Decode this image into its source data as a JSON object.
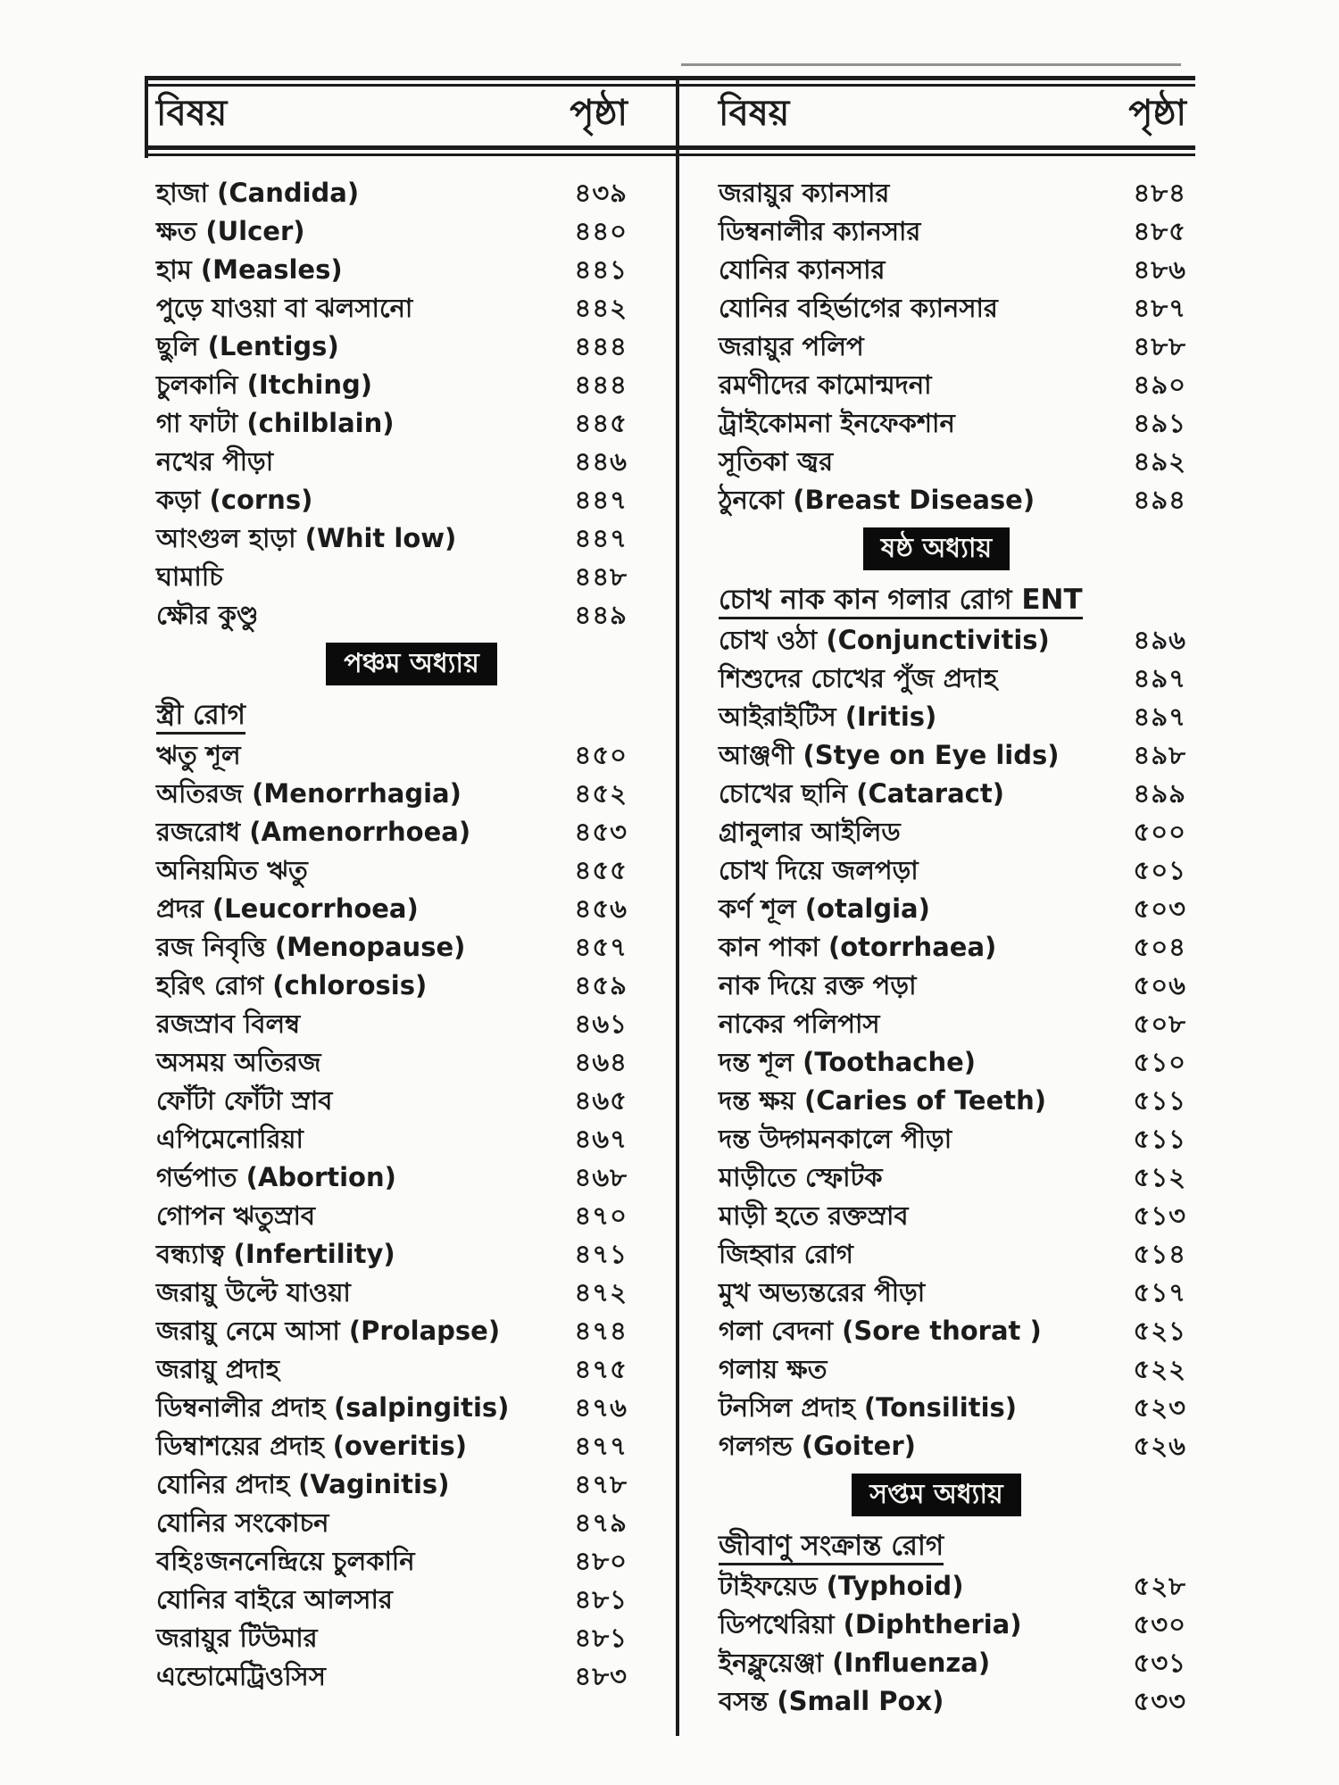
{
  "colors": {
    "paper": "#fbfbf9",
    "ink": "#1b1b1b",
    "banner_bg": "#0b0b0b",
    "banner_text": "#f4f4f0"
  },
  "table": {
    "columns": [
      {
        "header": {
          "subject": "বিষয়",
          "page": "পৃষ্ঠা"
        },
        "rows": [
          {
            "type": "item",
            "label": "হাজা (Candida)",
            "page": "৪৩৯"
          },
          {
            "type": "item",
            "label": "ক্ষত (Ulcer)",
            "page": "৪৪০"
          },
          {
            "type": "item",
            "label": "হাম (Measles)",
            "page": "৪৪১"
          },
          {
            "type": "item",
            "label": "পুড়ে যাওয়া বা ঝলসানো",
            "page": "৪৪২"
          },
          {
            "type": "item",
            "label": "ছুলি (Lentigs)",
            "page": "৪৪৪"
          },
          {
            "type": "item",
            "label": "চুলকানি (Itching)",
            "page": "৪৪৪"
          },
          {
            "type": "item",
            "label": "গা ফাটা (chilblain)",
            "page": "৪৪৫"
          },
          {
            "type": "item",
            "label": "নখের পীড়া",
            "page": "৪৪৬"
          },
          {
            "type": "item",
            "label": "কড়া (corns)",
            "page": "৪৪৭"
          },
          {
            "type": "item",
            "label": "আংগুল হাড়া (Whit low)",
            "page": "৪৪৭"
          },
          {
            "type": "item",
            "label": "ঘামাচি",
            "page": "৪৪৮"
          },
          {
            "type": "item",
            "label": "ক্ষৌর কুণ্ডু",
            "page": "৪৪৯"
          },
          {
            "type": "section",
            "label": "পঞ্চম অধ্যায়"
          },
          {
            "type": "category",
            "label": "স্ত্রী রোগ"
          },
          {
            "type": "item",
            "label": "ঋতু শূল",
            "page": "৪৫০"
          },
          {
            "type": "item",
            "label": "অতিরজ (Menorrhagia)",
            "page": "৪৫২"
          },
          {
            "type": "item",
            "label": "রজরোধ (Amenorrhoea)",
            "page": "৪৫৩"
          },
          {
            "type": "item",
            "label": "অনিয়মিত ঋতু",
            "page": "৪৫৫"
          },
          {
            "type": "item",
            "label": "প্রদর (Leucorrhoea)",
            "page": "৪৫৬"
          },
          {
            "type": "item",
            "label": "রজ নিবৃত্তি (Menopause)",
            "page": "৪৫৭"
          },
          {
            "type": "item",
            "label": "হরিৎ রোগ (chlorosis)",
            "page": "৪৫৯"
          },
          {
            "type": "item",
            "label": "রজস্রাব বিলম্ব",
            "page": "৪৬১"
          },
          {
            "type": "item",
            "label": "অসময় অতিরজ",
            "page": "৪৬৪"
          },
          {
            "type": "item",
            "label": "ফোঁটা ফোঁটা স্রাব",
            "page": "৪৬৫"
          },
          {
            "type": "item",
            "label": "এপিমেনোরিয়া",
            "page": "৪৬৭"
          },
          {
            "type": "item",
            "label": "গর্ভপাত (Abortion)",
            "page": "৪৬৮"
          },
          {
            "type": "item",
            "label": "গোপন ঋতুস্রাব",
            "page": "৪৭০"
          },
          {
            "type": "item",
            "label": "বন্ধ্যাত্ব (Infertility)",
            "page": "৪৭১"
          },
          {
            "type": "item",
            "label": "জরায়ু উল্টে যাওয়া",
            "page": "৪৭২"
          },
          {
            "type": "item",
            "label": "জরায়ু নেমে আসা (Prolapse)",
            "page": "৪৭৪"
          },
          {
            "type": "item",
            "label": "জরায়ু প্রদাহ",
            "page": "৪৭৫"
          },
          {
            "type": "item",
            "label": "ডিম্বনালীর প্রদাহ (salpingitis)",
            "page": "৪৭৬"
          },
          {
            "type": "item",
            "label": "ডিম্বাশয়ের প্রদাহ (overitis)",
            "page": "৪৭৭"
          },
          {
            "type": "item",
            "label": "যোনির প্রদাহ (Vaginitis)",
            "page": "৪৭৮"
          },
          {
            "type": "item",
            "label": "যোনির সংকোচন",
            "page": "৪৭৯"
          },
          {
            "type": "item",
            "label": "বহিঃজননেন্দ্রিয়ে চুলকানি",
            "page": "৪৮০"
          },
          {
            "type": "item",
            "label": "যোনির বাইরে আলসার",
            "page": "৪৮১"
          },
          {
            "type": "item",
            "label": "জরায়ুর টিউমার",
            "page": "৪৮১"
          },
          {
            "type": "item",
            "label": "এন্ডোমেট্রিওসিস",
            "page": "৪৮৩"
          }
        ]
      },
      {
        "header": {
          "subject": "বিষয়",
          "page": "পৃষ্ঠা"
        },
        "rows": [
          {
            "type": "item",
            "label": "জরায়ুর ক্যানসার",
            "page": "৪৮৪"
          },
          {
            "type": "item",
            "label": "ডিম্বনালীর ক্যানসার",
            "page": "৪৮৫"
          },
          {
            "type": "item",
            "label": "যোনির ক্যানসার",
            "page": "৪৮৬"
          },
          {
            "type": "item",
            "label": "যোনির বহির্ভাগের ক্যানসার",
            "page": "৪৮৭"
          },
          {
            "type": "item",
            "label": "জরায়ুর পলিপ",
            "page": "৪৮৮"
          },
          {
            "type": "item",
            "label": "রমণীদের কামোন্মদনা",
            "page": "৪৯০"
          },
          {
            "type": "item",
            "label": "ট্রাইকোমনা ইনফেকশান",
            "page": "৪৯১"
          },
          {
            "type": "item",
            "label": "সূতিকা জ্বর",
            "page": "৪৯২"
          },
          {
            "type": "item",
            "label": "ঠুনকো (Breast Disease)",
            "page": "৪৯৪"
          },
          {
            "type": "section",
            "label": "ষষ্ঠ অধ্যায়"
          },
          {
            "type": "category",
            "label": "চোখ নাক কান গলার রোগ ENT"
          },
          {
            "type": "item",
            "label": "চোখ ওঠা (Conjunctivitis)",
            "page": "৪৯৬"
          },
          {
            "type": "item",
            "label": "শিশুদের চোখের পুঁজ প্রদাহ",
            "page": "৪৯৭"
          },
          {
            "type": "item",
            "label": "আইরাইটিস (Iritis)",
            "page": "৪৯৭"
          },
          {
            "type": "item",
            "label": "আঞ্জণী (Stye on Eye lids)",
            "page": "৪৯৮"
          },
          {
            "type": "item",
            "label": "চোখের ছানি (Cataract)",
            "page": "৪৯৯"
          },
          {
            "type": "item",
            "label": "গ্রানুলার আইলিড",
            "page": "৫০০"
          },
          {
            "type": "item",
            "label": "চোখ দিয়ে জলপড়া",
            "page": "৫০১"
          },
          {
            "type": "item",
            "label": "কর্ণ শূল (otalgia)",
            "page": "৫০৩"
          },
          {
            "type": "item",
            "label": "কান পাকা (otorrhaea)",
            "page": "৫০৪"
          },
          {
            "type": "item",
            "label": "নাক দিয়ে রক্ত পড়া",
            "page": "৫০৬"
          },
          {
            "type": "item",
            "label": "নাকের পলিপাস",
            "page": "৫০৮"
          },
          {
            "type": "item",
            "label": "দন্ত শূল (Toothache)",
            "page": "৫১০"
          },
          {
            "type": "item",
            "label": "দন্ত ক্ষয় (Caries of Teeth)",
            "page": "৫১১"
          },
          {
            "type": "item",
            "label": "দন্ত উদ্গমনকালে পীড়া",
            "page": "৫১১"
          },
          {
            "type": "item",
            "label": "মাড়ীতে স্ফোটক",
            "page": "৫১২"
          },
          {
            "type": "item",
            "label": "মাড়ী হতে রক্তস্রাব",
            "page": "৫১৩"
          },
          {
            "type": "item",
            "label": "জিহ্বার রোগ",
            "page": "৫১৪"
          },
          {
            "type": "item",
            "label": "মুখ অভ্যন্তরের পীড়া",
            "page": "৫১৭"
          },
          {
            "type": "item",
            "label": "গলা বেদনা (Sore thorat )",
            "page": "৫২১"
          },
          {
            "type": "item",
            "label": "গলায় ক্ষত",
            "page": "৫২২"
          },
          {
            "type": "item",
            "label": "টনসিল প্রদাহ (Tonsilitis)",
            "page": "৫২৩"
          },
          {
            "type": "item",
            "label": "গলগন্ড (Goiter)",
            "page": "৫২৬"
          },
          {
            "type": "section",
            "label": "সপ্তম অধ্যায়"
          },
          {
            "type": "category",
            "label": "জীবাণু সংক্রান্ত রোগ"
          },
          {
            "type": "item",
            "label": "টাইফয়েড (Typhoid)",
            "page": "৫২৮"
          },
          {
            "type": "item",
            "label": "ডিপথেরিয়া (Diphtheria)",
            "page": "৫৩০"
          },
          {
            "type": "item",
            "label": "ইনফ্লুয়েঞ্জা (Influenza)",
            "page": "৫৩১"
          },
          {
            "type": "item",
            "label": "বসন্ত (Small Pox)",
            "page": "৫৩৩"
          }
        ]
      }
    ]
  }
}
